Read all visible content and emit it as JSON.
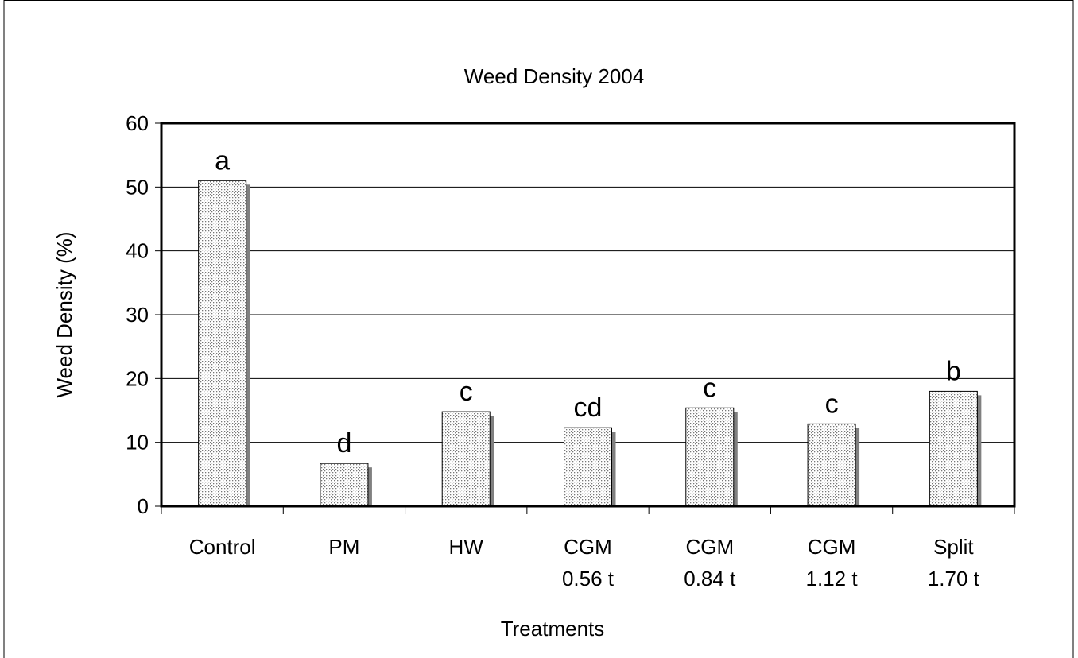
{
  "chart_data": {
    "type": "bar",
    "title": "Weed Density 2004",
    "x_label": "Treatments",
    "y_label": "Weed Density (%)",
    "categories": [
      [
        "Control"
      ],
      [
        "PM"
      ],
      [
        "HW"
      ],
      [
        "CGM",
        "0.56 t"
      ],
      [
        "CGM",
        "0.84 t"
      ],
      [
        "CGM",
        "1.12 t"
      ],
      [
        "Split",
        "1.70 t"
      ]
    ],
    "values": [
      51,
      6.7,
      14.8,
      12.3,
      15.4,
      12.9,
      18
    ],
    "annotations": [
      "a",
      "d",
      "c",
      "cd",
      "c",
      "c",
      "b"
    ],
    "color": "#d9d9d9",
    "ylim": [
      0,
      60
    ],
    "yticks": [
      0,
      10,
      20,
      30,
      40,
      50,
      60
    ],
    "grid": true
  }
}
